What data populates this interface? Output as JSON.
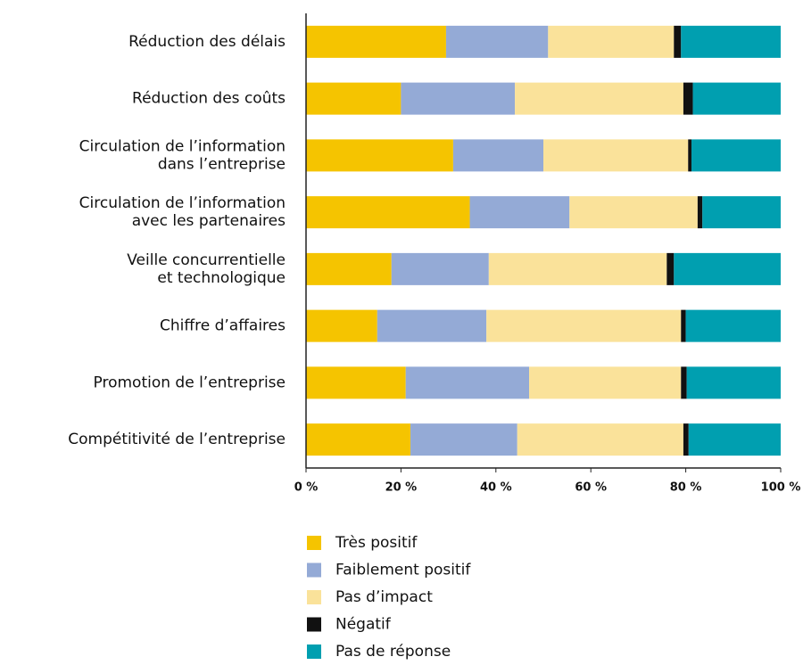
{
  "chart_data": {
    "type": "stacked_bar_horizontal",
    "categories": [
      "Réduction des délais",
      "Réduction des coûts",
      "Circulation de l’information\ndans l’entreprise",
      "Circulation de l’information\navec les partenaires",
      "Veille concurrentielle\net technologique",
      "Chiffre d’affaires",
      "Promotion de l’entreprise",
      "Compétitivité de l’entreprise"
    ],
    "series": [
      {
        "name": "Très positif",
        "color": "#f5c400",
        "values": [
          29.5,
          20,
          31,
          34.5,
          18,
          15,
          21,
          22
        ]
      },
      {
        "name": "Faiblement positif",
        "color": "#94aad6",
        "values": [
          21.5,
          24,
          19,
          21,
          20.5,
          23,
          26,
          22.5
        ]
      },
      {
        "name": "Pas d’impact",
        "color": "#fae29a",
        "values": [
          26.5,
          35.5,
          30.5,
          27,
          37.5,
          41,
          32,
          35
        ]
      },
      {
        "name": "Négatif",
        "color": "#111111",
        "values": [
          1.5,
          2,
          0.7,
          1,
          1.5,
          1,
          1.2,
          1.1
        ]
      },
      {
        "name": "Pas de réponse",
        "color": "#009fb0",
        "values": [
          21,
          18.5,
          18.8,
          16.5,
          22.5,
          20,
          19.8,
          19.4
        ]
      }
    ],
    "xlim": [
      0,
      100
    ],
    "xticks": [
      {
        "value": 0,
        "label": "0 %"
      },
      {
        "value": 20,
        "label": "20 %"
      },
      {
        "value": 40,
        "label": "40 %"
      },
      {
        "value": 60,
        "label": "60 %"
      },
      {
        "value": 80,
        "label": "80 %"
      },
      {
        "value": 100,
        "label": "100 %"
      }
    ]
  }
}
